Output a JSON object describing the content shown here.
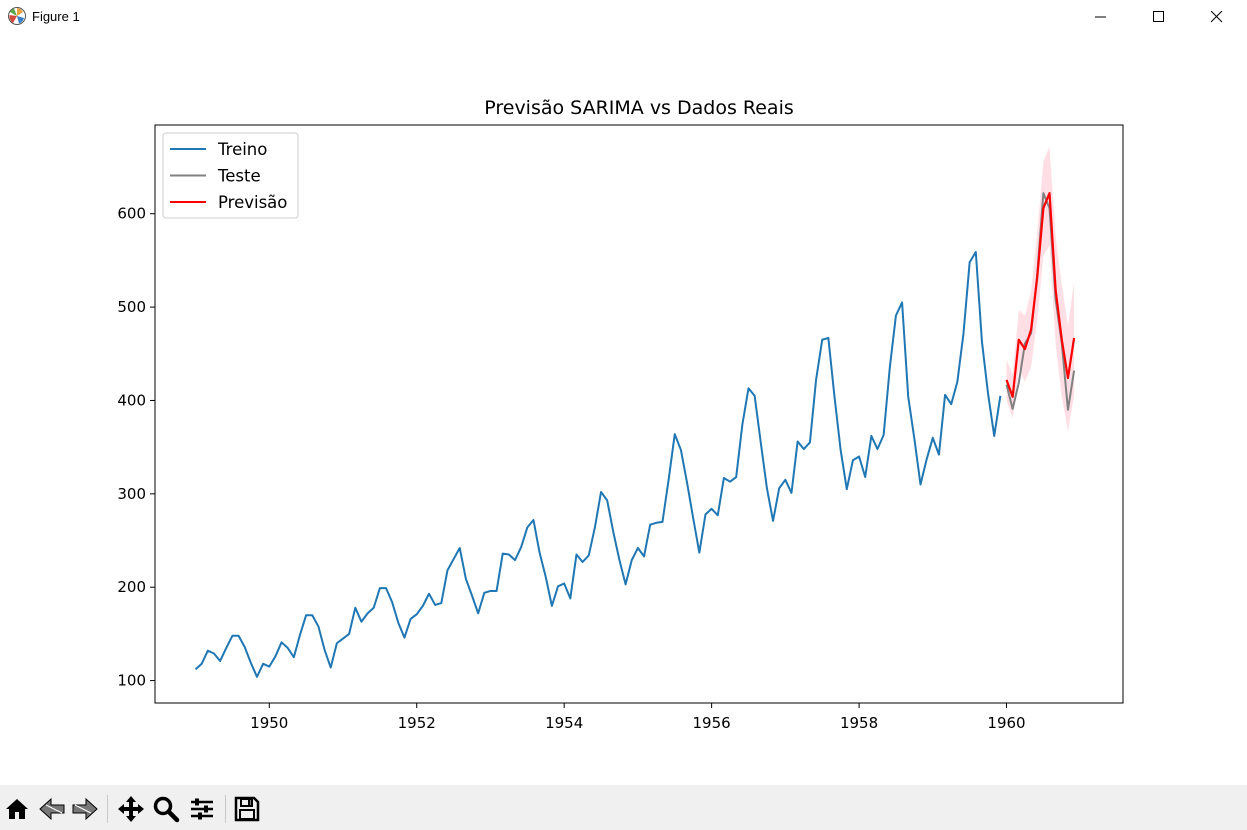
{
  "window": {
    "title": "Figure 1"
  },
  "icons": {
    "app": "matplotlib-icon",
    "minimize": "minimize-icon",
    "maximize": "maximize-icon",
    "close": "close-icon",
    "home": "home-icon",
    "back": "back-arrow-icon",
    "forward": "forward-arrow-icon",
    "pan": "pan-move-icon",
    "zoom": "zoom-magnifier-icon",
    "configure": "configure-subplots-icon",
    "save": "save-floppy-icon"
  },
  "chart_data": {
    "type": "line",
    "title": "Previsão SARIMA vs Dados Reais",
    "xlabel": "",
    "ylabel": "",
    "xlim": [
      1948.45,
      1961.58
    ],
    "ylim": [
      76,
      695
    ],
    "x_ticks": [
      1950,
      1952,
      1954,
      1956,
      1958,
      1960
    ],
    "x_tick_labels": [
      "1950",
      "1952",
      "1954",
      "1956",
      "1958",
      "1960"
    ],
    "y_ticks": [
      100,
      200,
      300,
      400,
      500,
      600
    ],
    "y_tick_labels": [
      "100",
      "200",
      "300",
      "400",
      "500",
      "600"
    ],
    "grid": false,
    "legend_position": "top-left",
    "series": [
      {
        "name": "Treino",
        "color": "#1f77b4",
        "x_start": 1949.0,
        "x_step": 0.0833333,
        "values": [
          112,
          118,
          132,
          129,
          121,
          135,
          148,
          148,
          136,
          119,
          104,
          118,
          115,
          126,
          141,
          135,
          125,
          149,
          170,
          170,
          158,
          133,
          114,
          140,
          145,
          150,
          178,
          163,
          172,
          178,
          199,
          199,
          184,
          162,
          146,
          166,
          171,
          180,
          193,
          181,
          183,
          218,
          230,
          242,
          209,
          191,
          172,
          194,
          196,
          196,
          236,
          235,
          229,
          243,
          264,
          272,
          237,
          211,
          180,
          201,
          204,
          188,
          235,
          227,
          234,
          264,
          302,
          293,
          259,
          229,
          203,
          229,
          242,
          233,
          267,
          269,
          270,
          315,
          364,
          347,
          312,
          274,
          237,
          278,
          284,
          277,
          317,
          313,
          318,
          374,
          413,
          405,
          355,
          306,
          271,
          306,
          315,
          301,
          356,
          348,
          355,
          422,
          465,
          467,
          404,
          347,
          305,
          336,
          340,
          318,
          362,
          348,
          363,
          435,
          491,
          505,
          404,
          359,
          310,
          337,
          360,
          342,
          406,
          396,
          420,
          472,
          548,
          559,
          463,
          407,
          362,
          405
        ]
      },
      {
        "name": "Teste",
        "color": "#808080",
        "x_start": 1960.0,
        "x_step": 0.0833333,
        "values": [
          417,
          391,
          419,
          461,
          472,
          535,
          622,
          606,
          508,
          461,
          390,
          432
        ]
      },
      {
        "name": "Previsão",
        "color": "#ff0000",
        "x_start": 1960.0,
        "x_step": 0.0833333,
        "values": [
          422,
          404,
          465,
          455,
          476,
          532,
          606,
          622,
          518,
          465,
          424,
          467
        ],
        "ci_lower": [
          400,
          381,
          434,
          420,
          436,
          485,
          555,
          566,
          460,
          404,
          367,
          405
        ],
        "ci_upper": [
          444,
          428,
          497,
          491,
          517,
          580,
          656,
          672,
          575,
          524,
          480,
          527
        ],
        "ci_color": "#ffc0cb"
      }
    ]
  }
}
